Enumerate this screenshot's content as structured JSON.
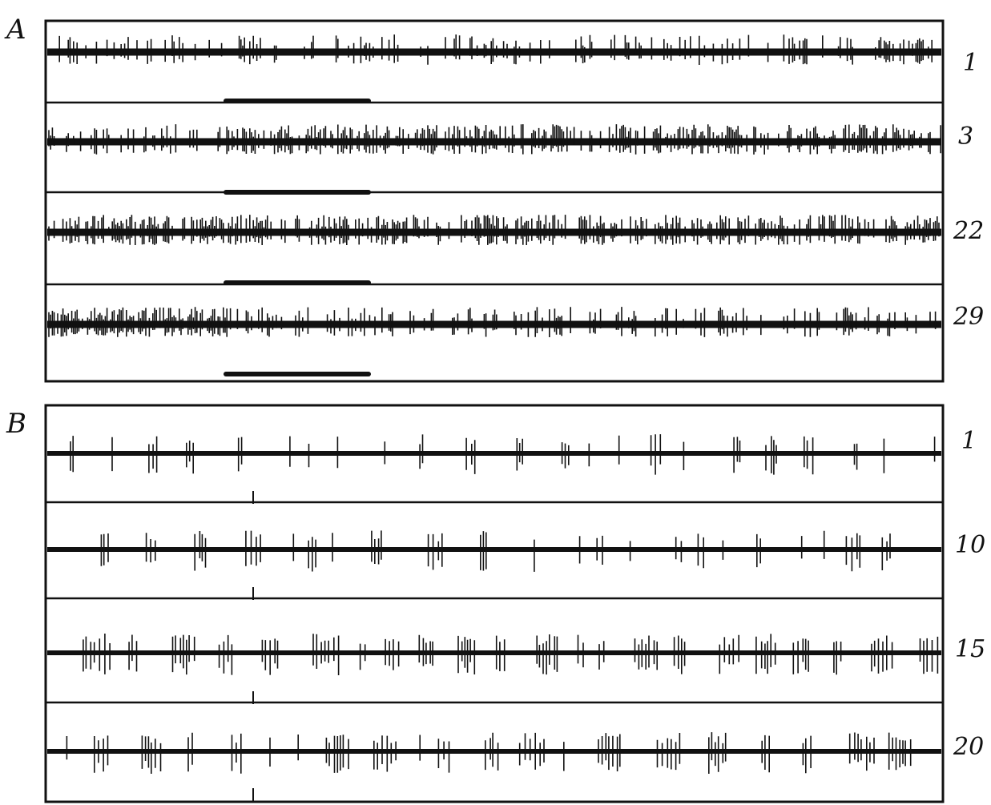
{
  "panels": [
    {
      "label": "A",
      "activity": "dense",
      "has_stimulus_bars": true,
      "traces": [
        {
          "label": "1",
          "pre_bar_density": "medium",
          "post_bar_density": "medium"
        },
        {
          "label": "3",
          "pre_bar_density": "medium",
          "post_bar_density": "high"
        },
        {
          "label": "22",
          "pre_bar_density": "high",
          "post_bar_density": "high"
        },
        {
          "label": "29",
          "pre_bar_density": "very-high",
          "post_bar_density": "medium"
        }
      ]
    },
    {
      "label": "B",
      "activity": "bursting",
      "has_stimulus_bars": false,
      "traces": [
        {
          "label": "1"
        },
        {
          "label": "10"
        },
        {
          "label": "15"
        },
        {
          "label": "20"
        }
      ]
    }
  ],
  "colors": {
    "ink": "#111111",
    "paper": "#ffffff"
  }
}
